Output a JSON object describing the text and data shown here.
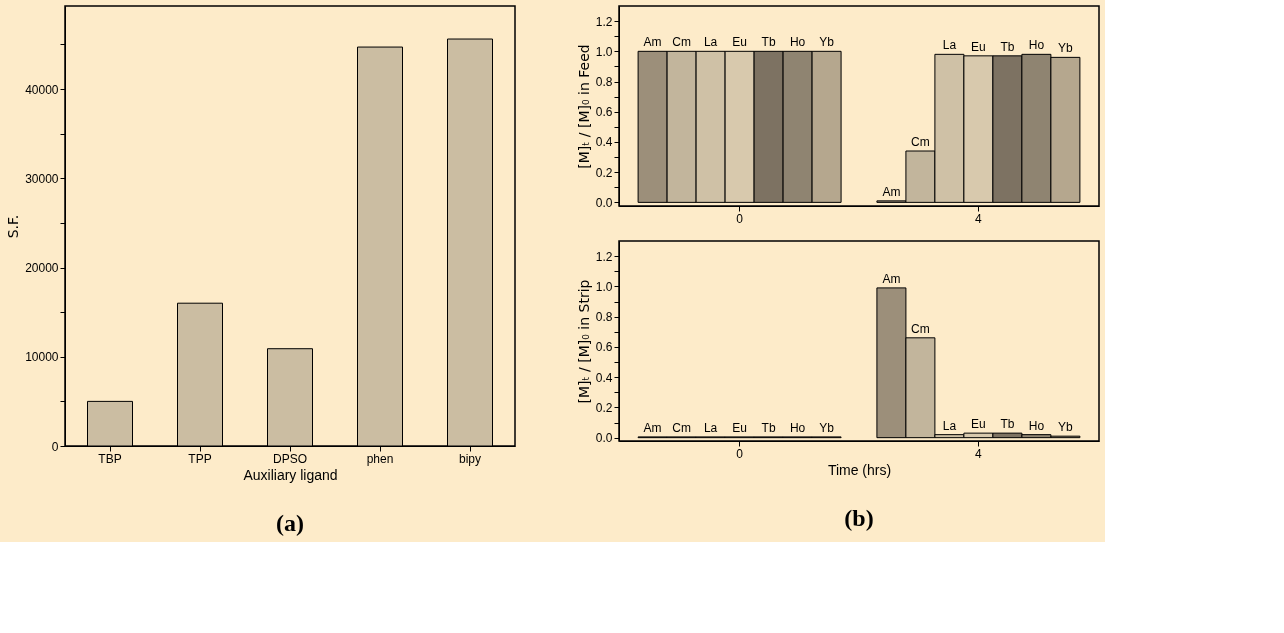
{
  "chart_data": [
    {
      "type": "bar",
      "xlabel": "Auxiliary ligand",
      "ylabel": "S.F.",
      "categories": [
        "TBP",
        "TPP",
        "DPSO",
        "phen",
        "bipy"
      ],
      "values": [
        5000,
        16000,
        10900,
        44700,
        45600
      ],
      "color": "#cbbda2",
      "ylim": [
        0,
        49300
      ],
      "yticks": [
        0,
        {
          "value": 5000,
          "label": null
        },
        10000,
        {
          "value": 15000,
          "label": null
        },
        20000,
        {
          "value": 25000,
          "label": null
        },
        30000,
        {
          "value": 35000,
          "label": null
        },
        40000,
        {
          "value": 45000,
          "label": null
        }
      ],
      "annotations": [
        "(a)"
      ]
    },
    {
      "type": "bar",
      "ylabel": "[M]ₜ / [M]₀ in Feed",
      "categories": [
        "0",
        "4"
      ],
      "ylim": [
        -0.024,
        1.3
      ],
      "yticks": [
        {
          "value": 0,
          "label": "0.0"
        },
        {
          "value": 0.1,
          "label": null
        },
        {
          "value": 0.2,
          "label": "0.2"
        },
        {
          "value": 0.3,
          "label": null
        },
        {
          "value": 0.4,
          "label": "0.4"
        },
        {
          "value": 0.5,
          "label": null
        },
        {
          "value": 0.6,
          "label": "0.6"
        },
        {
          "value": 0.7,
          "label": null
        },
        {
          "value": 0.8,
          "label": "0.8"
        },
        {
          "value": 0.9,
          "label": null
        },
        {
          "value": 1,
          "label": "1.0"
        },
        {
          "value": 1.1,
          "label": null
        },
        {
          "value": 1.2,
          "label": "1.2"
        }
      ],
      "series": [
        {
          "name": "Am",
          "color": "#9c8f7a",
          "values": [
            1.0,
            0.01
          ]
        },
        {
          "name": "Cm",
          "color": "#c2b59c",
          "values": [
            1.0,
            0.34
          ]
        },
        {
          "name": "La",
          "color": "#cfc1a6",
          "values": [
            1.0,
            0.98
          ]
        },
        {
          "name": "Eu",
          "color": "#d8c9ad",
          "values": [
            1.0,
            0.97
          ]
        },
        {
          "name": "Tb",
          "color": "#7d7262",
          "values": [
            1.0,
            0.97
          ]
        },
        {
          "name": "Ho",
          "color": "#8f8471",
          "values": [
            1.0,
            0.98
          ]
        },
        {
          "name": "Yb",
          "color": "#b5a78e",
          "values": [
            1.0,
            0.96
          ]
        }
      ]
    },
    {
      "type": "bar",
      "xlabel": "Time (hrs)",
      "ylabel": "[M]ₜ / [M]₀ in Strip",
      "categories": [
        "0",
        "4"
      ],
      "ylim": [
        -0.022,
        1.3
      ],
      "yticks": [
        {
          "value": 0,
          "label": "0.0"
        },
        {
          "value": 0.1,
          "label": null
        },
        {
          "value": 0.2,
          "label": "0.2"
        },
        {
          "value": 0.3,
          "label": null
        },
        {
          "value": 0.4,
          "label": "0.4"
        },
        {
          "value": 0.5,
          "label": null
        },
        {
          "value": 0.6,
          "label": "0.6"
        },
        {
          "value": 0.7,
          "label": null
        },
        {
          "value": 0.8,
          "label": "0.8"
        },
        {
          "value": 0.9,
          "label": null
        },
        {
          "value": 1,
          "label": "1.0"
        },
        {
          "value": 1.1,
          "label": null
        },
        {
          "value": 1.2,
          "label": "1.2"
        }
      ],
      "series": [
        {
          "name": "Am",
          "color": "#9c8f7a",
          "values": [
            0.005,
            0.99
          ]
        },
        {
          "name": "Cm",
          "color": "#c2b59c",
          "values": [
            0.005,
            0.66
          ]
        },
        {
          "name": "La",
          "color": "#cfc1a6",
          "values": [
            0.005,
            0.02
          ]
        },
        {
          "name": "Eu",
          "color": "#d8c9ad",
          "values": [
            0.005,
            0.03
          ]
        },
        {
          "name": "Tb",
          "color": "#7d7262",
          "values": [
            0.005,
            0.03
          ]
        },
        {
          "name": "Ho",
          "color": "#8f8471",
          "values": [
            0.005,
            0.02
          ]
        },
        {
          "name": "Yb",
          "color": "#b5a78e",
          "values": [
            0.005,
            0.01
          ]
        }
      ],
      "annotations": [
        "(b)"
      ]
    }
  ]
}
